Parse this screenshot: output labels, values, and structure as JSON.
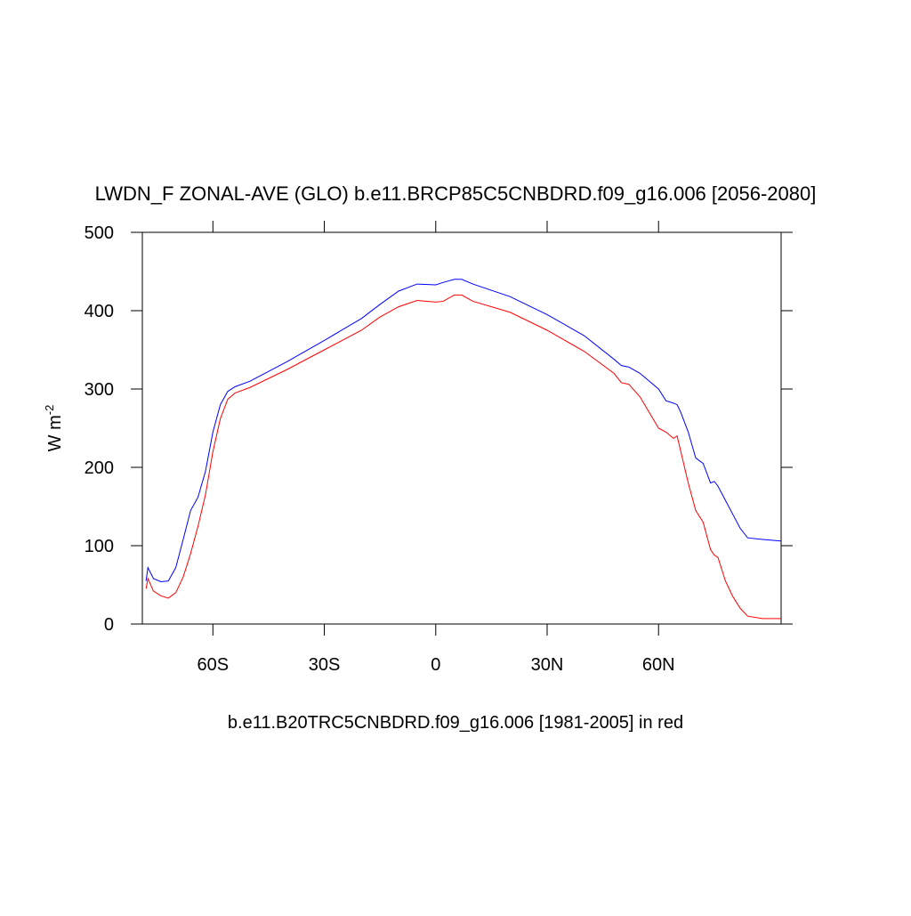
{
  "chart_data": {
    "type": "line",
    "title": "LWDN_F ZONAL-AVE (GLO) b.e11.BRCP85C5CNBDRD.f09_g16.006 [2056-2080]",
    "x_label": "b.e11.B20TRC5CNBDRD.f09_g16.006 [1981-2005] in red",
    "y_label": "W m",
    "y_label_sup": "-2",
    "x": [
      -78,
      -77.5,
      -76,
      -74,
      -72,
      -70,
      -68,
      -66,
      -64,
      -62,
      -60,
      -58,
      -56,
      -54,
      -50,
      -40,
      -30,
      -20,
      -15,
      -10,
      -5,
      0,
      2,
      5,
      7,
      10,
      20,
      30,
      40,
      48,
      50,
      52,
      55,
      60,
      62,
      64,
      65,
      66,
      68,
      70,
      72,
      74,
      75,
      76,
      78,
      80,
      82,
      84,
      88,
      93
    ],
    "series": [
      {
        "color": "#0000ff",
        "values": [
          55,
          72,
          58,
          54,
          55,
          72,
          108,
          145,
          162,
          195,
          245,
          280,
          297,
          303,
          310,
          335,
          362,
          390,
          408,
          425,
          434,
          433,
          436,
          440,
          440,
          434,
          418,
          395,
          368,
          338,
          330,
          328,
          320,
          300,
          285,
          282,
          280,
          270,
          245,
          212,
          205,
          180,
          182,
          176,
          158,
          140,
          122,
          110,
          108,
          106
        ]
      },
      {
        "color": "#ff0000",
        "values": [
          45,
          58,
          42,
          36,
          33,
          40,
          60,
          90,
          125,
          165,
          220,
          262,
          287,
          295,
          302,
          325,
          350,
          375,
          392,
          405,
          413,
          411,
          412,
          420,
          420,
          412,
          398,
          375,
          348,
          320,
          308,
          306,
          290,
          250,
          245,
          237,
          240,
          220,
          180,
          145,
          130,
          95,
          88,
          85,
          55,
          35,
          20,
          10,
          7,
          7
        ]
      }
    ],
    "xlim": [
      -79,
      93
    ],
    "xticks": [
      {
        "value": -60,
        "label": "60S"
      },
      {
        "value": -30,
        "label": "30S"
      },
      0,
      {
        "value": 30,
        "label": "30N"
      },
      {
        "value": 60,
        "label": "60N"
      }
    ],
    "ylim": [
      0,
      500
    ],
    "yticks": [
      0,
      100,
      200,
      300,
      400,
      500
    ]
  }
}
